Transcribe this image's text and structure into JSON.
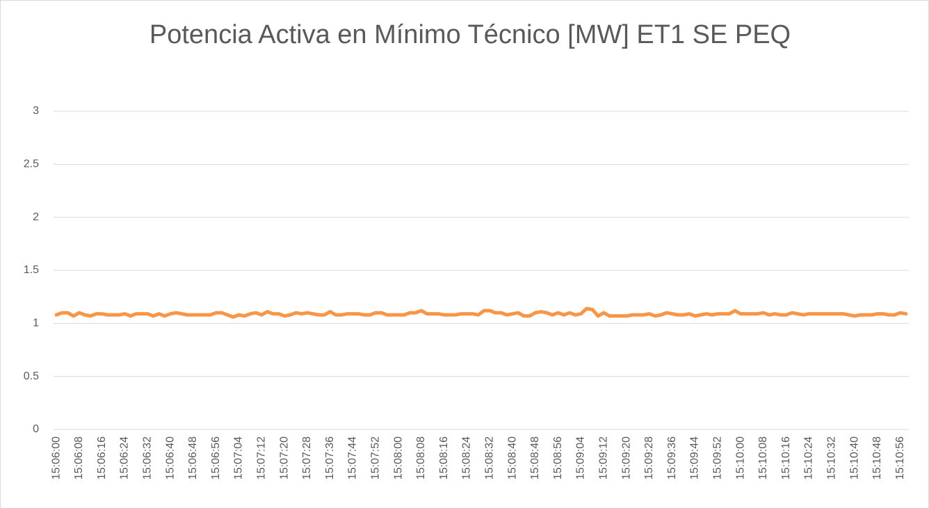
{
  "chart_data": {
    "type": "line",
    "title": "Potencia Activa en Mínimo Técnico [MW] ET1 SE PEQ",
    "categories": [
      "15:06:00",
      null,
      null,
      null,
      "15:06:08",
      null,
      null,
      null,
      "15:06:16",
      null,
      null,
      null,
      "15:06:24",
      null,
      null,
      null,
      "15:06:32",
      null,
      null,
      null,
      "15:06:40",
      null,
      null,
      null,
      "15:06:48",
      null,
      null,
      null,
      "15:06:56",
      null,
      null,
      null,
      "15:07:04",
      null,
      null,
      null,
      "15:07:12",
      null,
      null,
      null,
      "15:07:20",
      null,
      null,
      null,
      "15:07:28",
      null,
      null,
      null,
      "15:07:36",
      null,
      null,
      null,
      "15:07:44",
      null,
      null,
      null,
      "15:07:52",
      null,
      null,
      null,
      "15:08:00",
      null,
      null,
      null,
      "15:08:08",
      null,
      null,
      null,
      "15:08:16",
      null,
      null,
      null,
      "15:08:24",
      null,
      null,
      null,
      "15:08:32",
      null,
      null,
      null,
      "15:08:40",
      null,
      null,
      null,
      "15:08:48",
      null,
      null,
      null,
      "15:08:56",
      null,
      null,
      null,
      "15:09:04",
      null,
      null,
      null,
      "15:09:12",
      null,
      null,
      null,
      "15:09:20",
      null,
      null,
      null,
      "15:09:28",
      null,
      null,
      null,
      "15:09:36",
      null,
      null,
      null,
      "15:09:44",
      null,
      null,
      null,
      "15:09:52",
      null,
      null,
      null,
      "15:10:00",
      null,
      null,
      null,
      "15:10:08",
      null,
      null,
      null,
      "15:10:16",
      null,
      null,
      null,
      "15:10:24",
      null,
      null,
      null,
      "15:10:32",
      null,
      null,
      null,
      "15:10:40",
      null,
      null,
      null,
      "15:10:48",
      null,
      null,
      null,
      "15:10:56",
      null
    ],
    "series": [
      {
        "name": "Potencia Activa",
        "color": "#f79646",
        "values": [
          1.08,
          1.1,
          1.1,
          1.07,
          1.1,
          1.08,
          1.07,
          1.09,
          1.09,
          1.08,
          1.08,
          1.08,
          1.09,
          1.07,
          1.09,
          1.09,
          1.09,
          1.07,
          1.09,
          1.07,
          1.09,
          1.1,
          1.09,
          1.08,
          1.08,
          1.08,
          1.08,
          1.08,
          1.1,
          1.1,
          1.08,
          1.06,
          1.08,
          1.07,
          1.09,
          1.1,
          1.08,
          1.11,
          1.09,
          1.09,
          1.07,
          1.08,
          1.1,
          1.09,
          1.1,
          1.09,
          1.08,
          1.08,
          1.11,
          1.08,
          1.08,
          1.09,
          1.09,
          1.09,
          1.08,
          1.08,
          1.1,
          1.1,
          1.08,
          1.08,
          1.08,
          1.08,
          1.1,
          1.1,
          1.12,
          1.09,
          1.09,
          1.09,
          1.08,
          1.08,
          1.08,
          1.09,
          1.09,
          1.09,
          1.08,
          1.12,
          1.12,
          1.1,
          1.1,
          1.08,
          1.09,
          1.1,
          1.07,
          1.07,
          1.1,
          1.11,
          1.1,
          1.08,
          1.1,
          1.08,
          1.1,
          1.08,
          1.09,
          1.14,
          1.13,
          1.07,
          1.1,
          1.07,
          1.07,
          1.07,
          1.07,
          1.08,
          1.08,
          1.08,
          1.09,
          1.07,
          1.08,
          1.1,
          1.09,
          1.08,
          1.08,
          1.09,
          1.07,
          1.08,
          1.09,
          1.08,
          1.09,
          1.09,
          1.09,
          1.12,
          1.09,
          1.09,
          1.09,
          1.09,
          1.1,
          1.08,
          1.09,
          1.08,
          1.08,
          1.1,
          1.09,
          1.08,
          1.09,
          1.09,
          1.09,
          1.09,
          1.09,
          1.09,
          1.09,
          1.08,
          1.07,
          1.08,
          1.08,
          1.08,
          1.09,
          1.09,
          1.08,
          1.08,
          1.1,
          1.09
        ]
      }
    ],
    "ylim": [
      0,
      3
    ],
    "yticks": [
      0,
      0.5,
      1,
      1.5,
      2,
      2.5,
      3
    ],
    "grid": true
  }
}
